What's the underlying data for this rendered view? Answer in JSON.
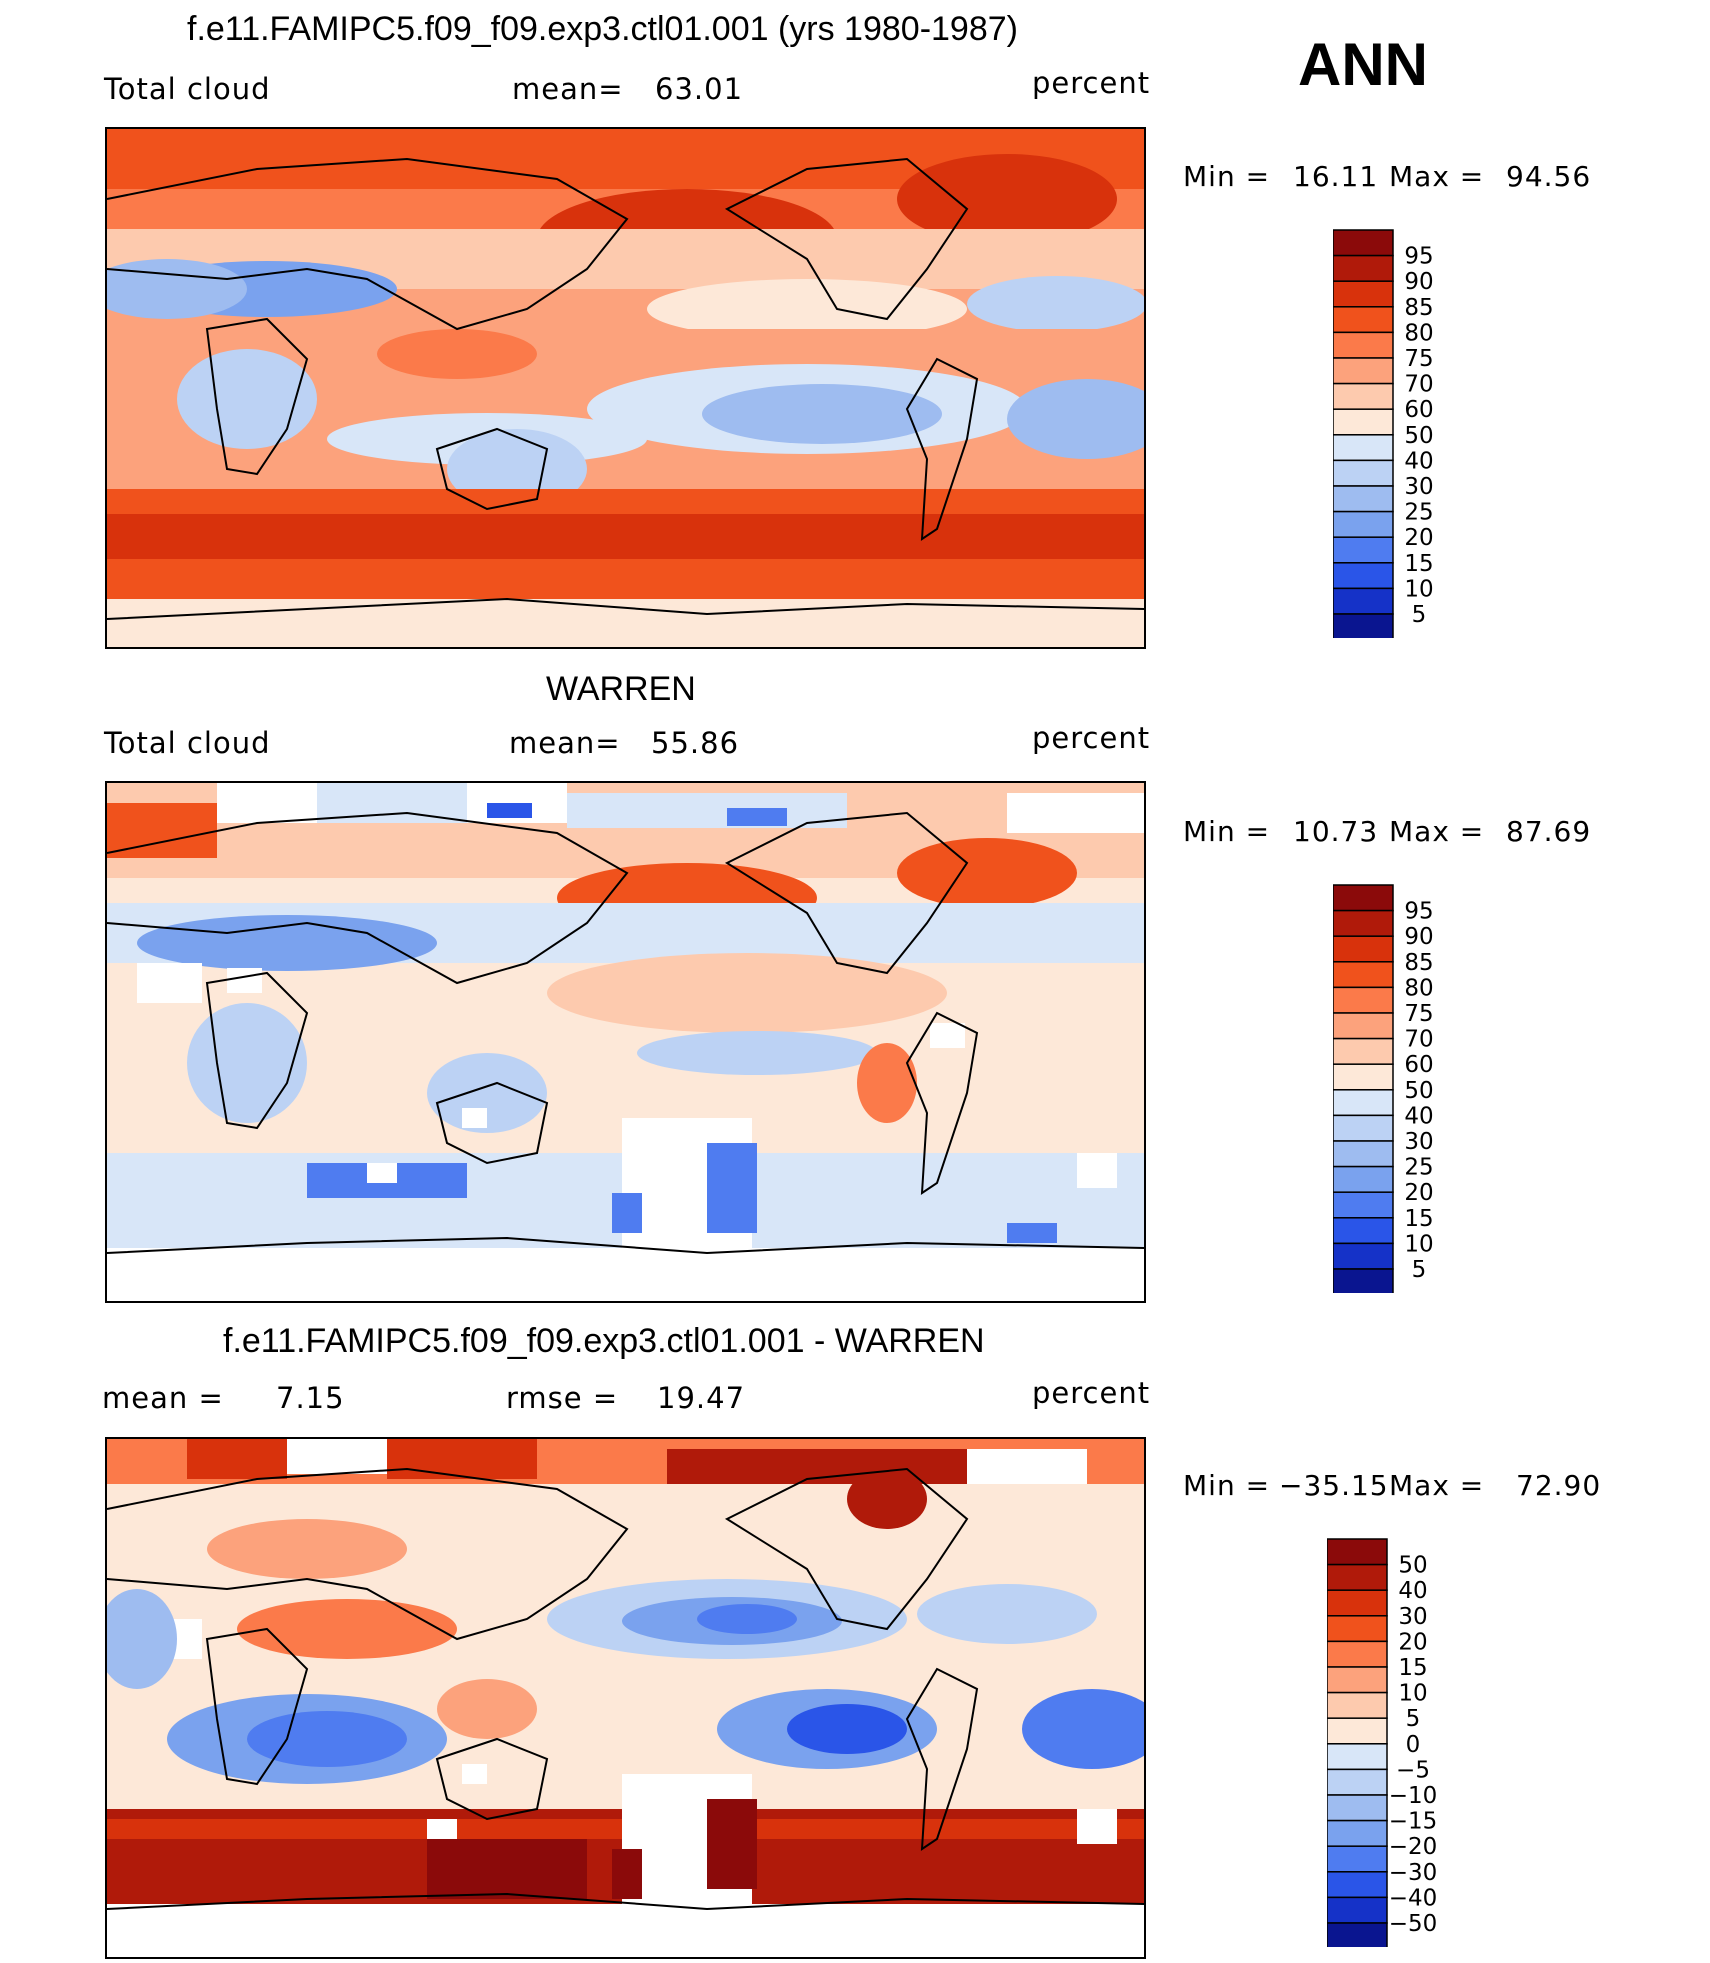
{
  "season": "ANN",
  "panels": [
    {
      "title": "f.e11.FAMIPC5.f09_f09.exp3.ctl01.001 (yrs 1980-1987)",
      "left": "Total cloud",
      "mid_label": "mean=",
      "mid_value": "63.01",
      "mid2_label": "",
      "mid2_value": "",
      "units": "percent",
      "min_label": "Min =",
      "min_value": "16.11",
      "max_label": "Max =",
      "max_value": "94.56",
      "colorbar_labels": [
        "95",
        "90",
        "85",
        "80",
        "75",
        "70",
        "60",
        "50",
        "40",
        "30",
        "25",
        "20",
        "15",
        "10",
        "5"
      ]
    },
    {
      "title": "WARREN",
      "left": "Total cloud",
      "mid_label": "mean=",
      "mid_value": "55.86",
      "mid2_label": "",
      "mid2_value": "",
      "units": "percent",
      "min_label": "Min =",
      "min_value": "10.73",
      "max_label": "Max =",
      "max_value": "87.69",
      "colorbar_labels": [
        "95",
        "90",
        "85",
        "80",
        "75",
        "70",
        "60",
        "50",
        "40",
        "30",
        "25",
        "20",
        "15",
        "10",
        "5"
      ]
    },
    {
      "title": "f.e11.FAMIPC5.f09_f09.exp3.ctl01.001 - WARREN",
      "left": "mean =",
      "mid_label": "",
      "mid_value": "7.15",
      "mid2_label": "rmse =",
      "mid2_value": "19.47",
      "units": "percent",
      "min_label": "Min =",
      "min_value": "−35.15",
      "max_label": "Max =",
      "max_value": "72.90",
      "colorbar_labels": [
        "50",
        "40",
        "30",
        "20",
        "15",
        "10",
        "5",
        "0",
        "−5",
        "−10",
        "−15",
        "−20",
        "−30",
        "−40",
        "−50"
      ]
    }
  ],
  "colors": {
    "levels_top_to_bottom": [
      "#8b0a0a",
      "#b01a0a",
      "#d8320c",
      "#f0521c",
      "#fb7a4a",
      "#fca27c",
      "#fdcaae",
      "#fde8d8",
      "#d8e6f8",
      "#bcd2f4",
      "#9ebcf0",
      "#7aa2ee",
      "#4f7cf0",
      "#2a55e8",
      "#1532c8",
      "#0a1590"
    ],
    "coastline": "#000000",
    "missing": "#ffffff"
  }
}
